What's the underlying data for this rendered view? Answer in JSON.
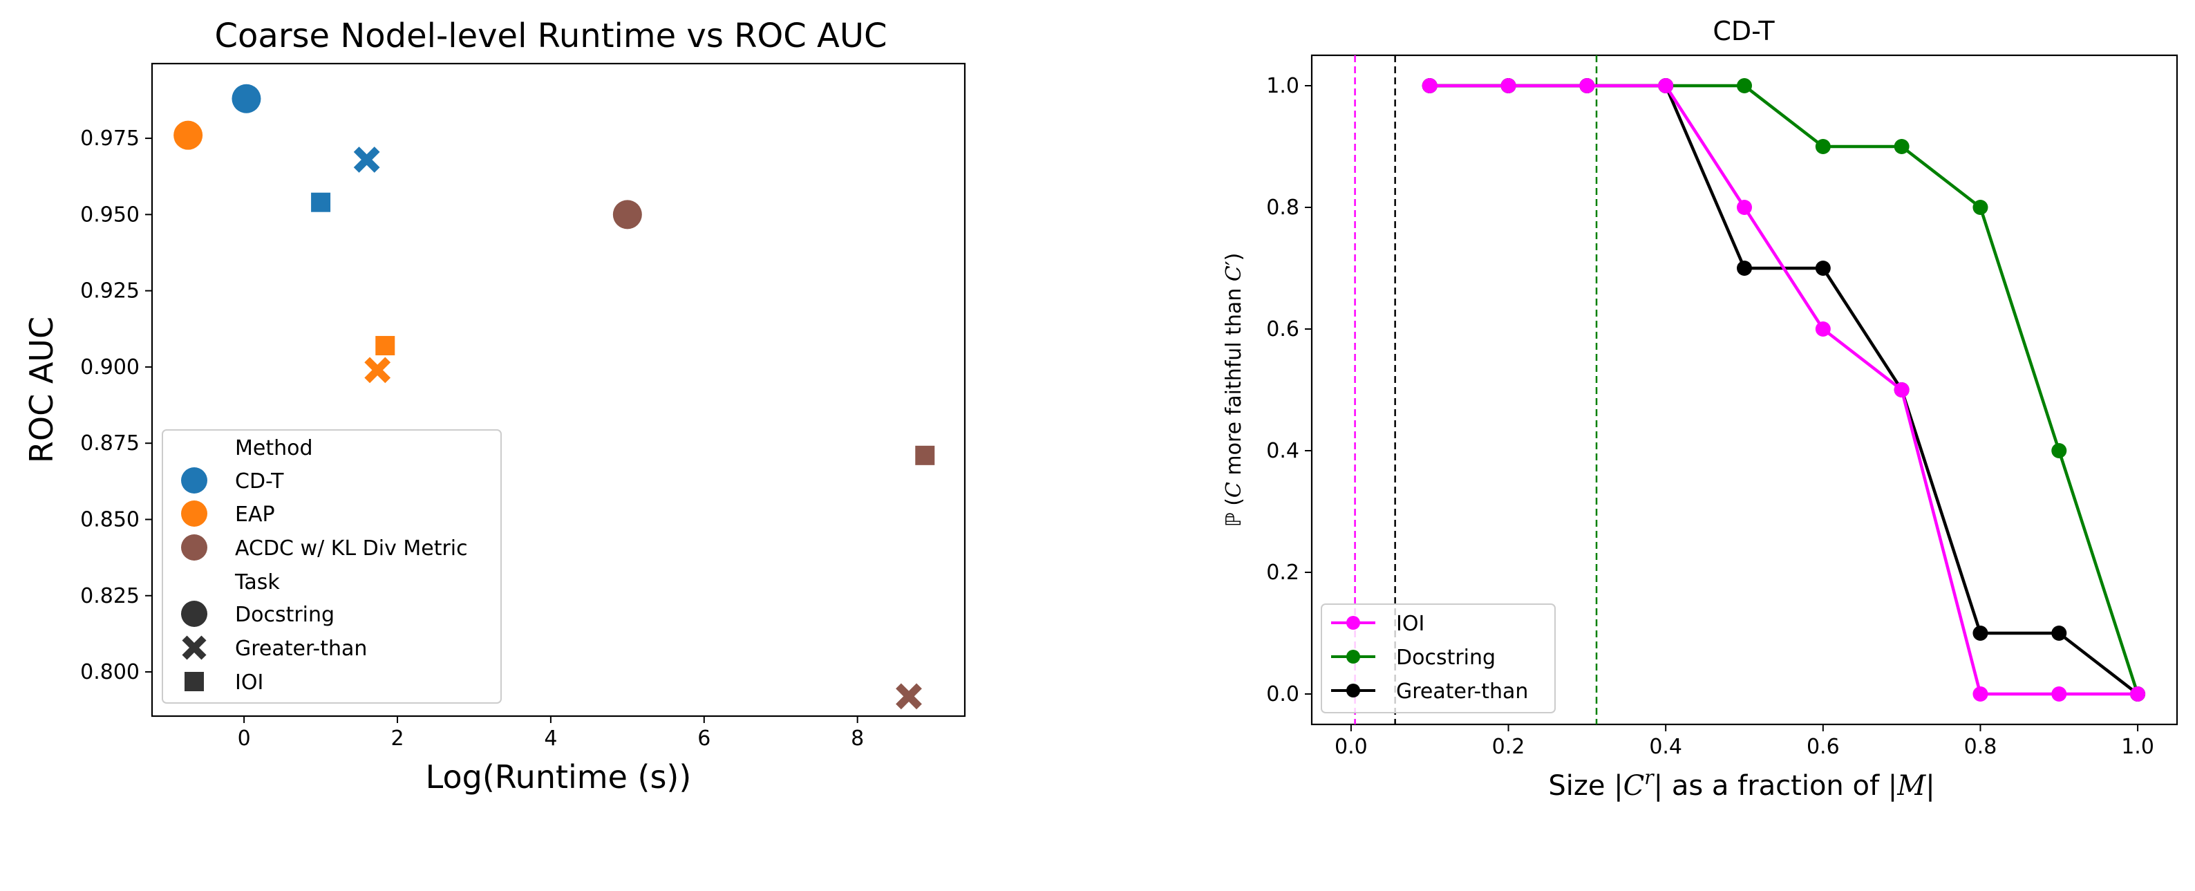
{
  "charts": [
    {
      "title": "Coarse Nodel-level Runtime vs ROC AUC",
      "xlabel": "Log(Runtime (s))",
      "ylabel": "ROC AUC",
      "legend": {
        "method_heading": "Method",
        "methods": [
          {
            "label": "CD-T",
            "color": "#1f77b4"
          },
          {
            "label": "EAP",
            "color": "#ff7f0e"
          },
          {
            "label": "ACDC w/ KL Div Metric",
            "color": "#8c564b"
          }
        ],
        "task_heading": "Task",
        "tasks": [
          {
            "label": "Docstring",
            "marker": "circle"
          },
          {
            "label": "Greater-than",
            "marker": "x"
          },
          {
            "label": "IOI",
            "marker": "square"
          }
        ]
      }
    },
    {
      "title": "CD-T",
      "xlabel_parts": {
        "a": "Size |",
        "b": "C",
        "c": "r",
        "d": "| as a fraction of |",
        "e": "M",
        "f": "|"
      },
      "ylabel_parts": {
        "a": "ℙ (",
        "b": "C",
        "c": " more faithful than ",
        "d": "C",
        "e": "′)"
      },
      "legend": [
        "IOI",
        "Docstring",
        "Greater-than"
      ]
    }
  ],
  "chart_data": [
    {
      "type": "scatter",
      "title": "Coarse Nodel-level Runtime vs ROC AUC",
      "xlabel": "Log(Runtime (s))",
      "ylabel": "ROC AUC",
      "xlim": [
        -1.2,
        9.4
      ],
      "ylim": [
        0.7855,
        0.9995
      ],
      "xticks": [
        0,
        2,
        4,
        6,
        8
      ],
      "yticks": [
        0.8,
        0.825,
        0.85,
        0.875,
        0.9,
        0.925,
        0.95,
        0.975
      ],
      "grid": false,
      "legend_position": "lower-left",
      "points": [
        {
          "method": "CD-T",
          "task": "Docstring",
          "x": 0.03,
          "y": 0.988,
          "color": "#1f77b4"
        },
        {
          "method": "CD-T",
          "task": "Greater-than",
          "x": 1.6,
          "y": 0.968,
          "color": "#1f77b4"
        },
        {
          "method": "CD-T",
          "task": "IOI",
          "x": 1.0,
          "y": 0.954,
          "color": "#1f77b4"
        },
        {
          "method": "EAP",
          "task": "Docstring",
          "x": -0.73,
          "y": 0.976,
          "color": "#ff7f0e"
        },
        {
          "method": "EAP",
          "task": "Greater-than",
          "x": 1.74,
          "y": 0.899,
          "color": "#ff7f0e"
        },
        {
          "method": "EAP",
          "task": "IOI",
          "x": 1.84,
          "y": 0.907,
          "color": "#ff7f0e"
        },
        {
          "method": "ACDC w/ KL Div Metric",
          "task": "Docstring",
          "x": 5.0,
          "y": 0.95,
          "color": "#8c564b"
        },
        {
          "method": "ACDC w/ KL Div Metric",
          "task": "Greater-than",
          "x": 8.67,
          "y": 0.792,
          "color": "#8c564b"
        },
        {
          "method": "ACDC w/ KL Div Metric",
          "task": "IOI",
          "x": 8.88,
          "y": 0.871,
          "color": "#8c564b"
        }
      ]
    },
    {
      "type": "line",
      "title": "CD-T",
      "xlabel": "Size |C^r| as a fraction of |M|",
      "ylabel": "ℙ (C more faithful than C′)",
      "xlim": [
        -0.05,
        1.05
      ],
      "ylim": [
        -0.05,
        1.05
      ],
      "xticks": [
        0.0,
        0.2,
        0.4,
        0.6,
        0.8,
        1.0
      ],
      "yticks": [
        0.0,
        0.2,
        0.4,
        0.6,
        0.8,
        1.0
      ],
      "grid": false,
      "legend_position": "lower-left",
      "series": [
        {
          "name": "IOI",
          "color": "#ff00ff",
          "x": [
            0.1,
            0.2,
            0.3,
            0.4,
            0.5,
            0.6,
            0.7,
            0.8,
            0.9,
            1.0
          ],
          "y": [
            1.0,
            1.0,
            1.0,
            1.0,
            0.8,
            0.6,
            0.5,
            0.0,
            0.0,
            0.0
          ],
          "vline": 0.005
        },
        {
          "name": "Docstring",
          "color": "#008000",
          "x": [
            0.1,
            0.2,
            0.3,
            0.4,
            0.5,
            0.6,
            0.7,
            0.8,
            0.9,
            1.0
          ],
          "y": [
            1.0,
            1.0,
            1.0,
            1.0,
            1.0,
            0.9,
            0.9,
            0.8,
            0.4,
            0.0
          ],
          "vline": 0.312
        },
        {
          "name": "Greater-than",
          "color": "#000000",
          "x": [
            0.1,
            0.2,
            0.3,
            0.4,
            0.5,
            0.6,
            0.7,
            0.8,
            0.9,
            1.0
          ],
          "y": [
            1.0,
            1.0,
            1.0,
            1.0,
            0.7,
            0.7,
            0.5,
            0.1,
            0.1,
            0.0
          ],
          "vline": 0.056
        }
      ]
    }
  ]
}
